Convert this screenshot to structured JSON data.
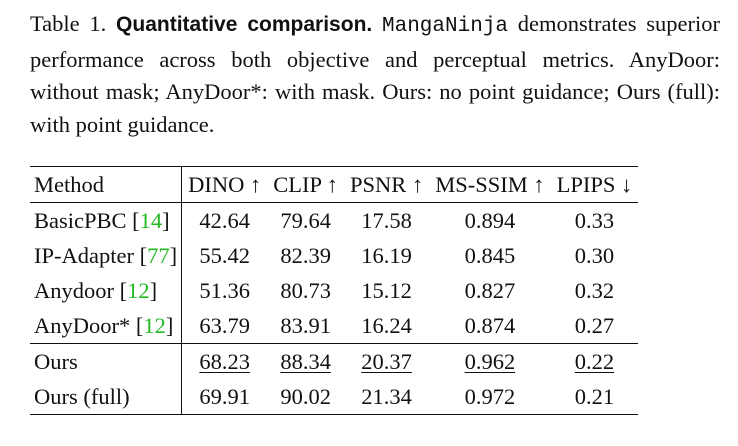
{
  "caption": {
    "label": "Table 1.",
    "title": "Quantitative comparison.",
    "method_name": "MangaNinja",
    "text": "demonstrates superior performance across both objective and perceptual metrics. AnyDoor: without mask; AnyDoor*: with mask. Ours: no point guidance; Ours (full): with point guidance."
  },
  "table": {
    "headers": [
      "Method",
      "DINO ↑",
      "CLIP ↑",
      "PSNR ↑",
      "MS-SSIM ↑",
      "LPIPS ↓"
    ],
    "rows": [
      {
        "name": "BasicPBC",
        "cite": "14",
        "values": [
          "42.64",
          "79.64",
          "17.58",
          "0.894",
          "0.33"
        ]
      },
      {
        "name": "IP-Adapter",
        "cite": "77",
        "values": [
          "55.42",
          "82.39",
          "16.19",
          "0.845",
          "0.30"
        ]
      },
      {
        "name": "Anydoor",
        "cite": "12",
        "values": [
          "51.36",
          "80.73",
          "15.12",
          "0.827",
          "0.32"
        ]
      },
      {
        "name": "AnyDoor*",
        "cite": "12",
        "values": [
          "63.79",
          "83.91",
          "16.24",
          "0.874",
          "0.27"
        ]
      }
    ],
    "ours": [
      {
        "name": "Ours",
        "style": "underline",
        "values": [
          "68.23",
          "88.34",
          "20.37",
          "0.962",
          "0.22"
        ]
      },
      {
        "name": "Ours (full)",
        "style": "bold",
        "values": [
          "69.91",
          "90.02",
          "21.34",
          "0.972",
          "0.21"
        ]
      }
    ]
  }
}
